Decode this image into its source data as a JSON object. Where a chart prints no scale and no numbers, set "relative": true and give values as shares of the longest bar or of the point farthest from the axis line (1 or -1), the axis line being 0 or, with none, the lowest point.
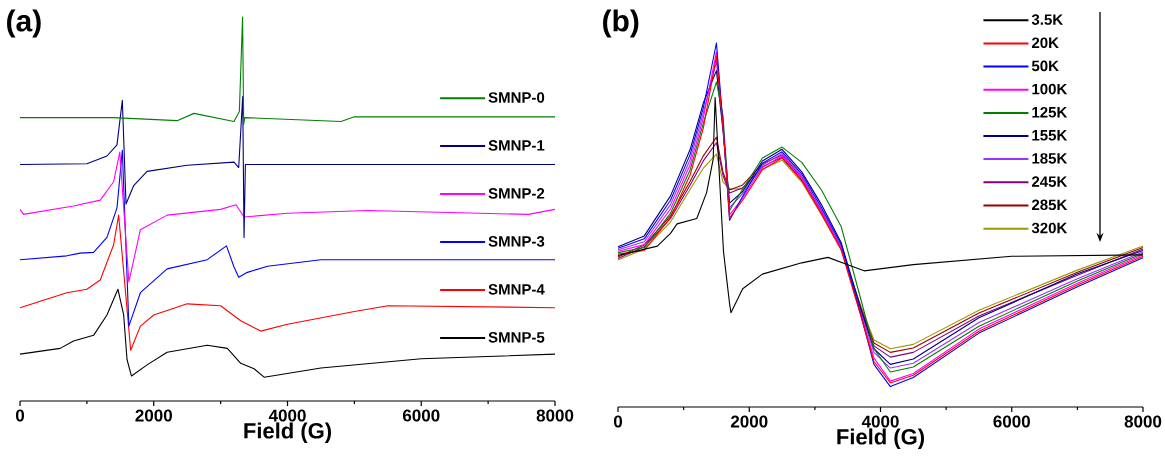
{
  "chart_data": [
    {
      "type": "line",
      "title": "(a)",
      "xlabel": "Field (G)",
      "relative": true,
      "xlim": [
        0,
        8000
      ],
      "xticks": [
        0,
        2000,
        4000,
        6000,
        8000
      ],
      "legend": "right",
      "series": [
        {
          "name": "SMNP-0",
          "color": "#008000",
          "x": [
            0,
            1400,
            2350,
            2600,
            3200,
            3280,
            3328,
            3345,
            3360,
            4800,
            5000,
            8000
          ],
          "values": [
            0.738,
            0.738,
            0.73,
            0.749,
            0.728,
            0.754,
            1.0,
            0.72,
            0.738,
            0.728,
            0.74,
            0.74
          ]
        },
        {
          "name": "SMNP-1",
          "color": "#000080",
          "x": [
            0,
            1000,
            1300,
            1450,
            1530,
            1585,
            1700,
            1900,
            2500,
            3200,
            3270,
            3330,
            3350,
            3370,
            8000
          ],
          "values": [
            0.616,
            0.618,
            0.638,
            0.667,
            0.783,
            0.513,
            0.561,
            0.598,
            0.614,
            0.622,
            0.608,
            0.793,
            0.426,
            0.616,
            0.616
          ]
        },
        {
          "name": "SMNP-2",
          "color": "#ff00ff",
          "x": [
            0,
            50,
            800,
            1200,
            1400,
            1492,
            1628,
            1800,
            2200,
            3000,
            3230,
            3350,
            4000,
            5200,
            7600,
            8000
          ],
          "values": [
            0.499,
            0.486,
            0.508,
            0.523,
            0.571,
            0.648,
            0.31,
            0.446,
            0.484,
            0.499,
            0.511,
            0.479,
            0.489,
            0.496,
            0.486,
            0.499
          ]
        },
        {
          "name": "SMNP-3",
          "color": "#0000ff",
          "x": [
            0,
            700,
            900,
            1100,
            1300,
            1450,
            1530,
            1628,
            1800,
            2200,
            2800,
            3087,
            3200,
            3270,
            3400,
            3700,
            4500,
            8000
          ],
          "values": [
            0.368,
            0.378,
            0.385,
            0.387,
            0.426,
            0.503,
            0.653,
            0.195,
            0.282,
            0.344,
            0.368,
            0.404,
            0.349,
            0.322,
            0.335,
            0.351,
            0.368,
            0.368
          ]
        },
        {
          "name": "SMNP-4",
          "color": "#ff0000",
          "x": [
            0,
            700,
            1000,
            1200,
            1400,
            1475,
            1655,
            1800,
            2000,
            2500,
            3000,
            3300,
            3600,
            4000,
            5000,
            5500,
            8000
          ],
          "values": [
            0.243,
            0.282,
            0.291,
            0.315,
            0.407,
            0.484,
            0.132,
            0.195,
            0.224,
            0.253,
            0.248,
            0.209,
            0.182,
            0.2,
            0.233,
            0.248,
            0.243
          ]
        },
        {
          "name": "SMNP-5",
          "color": "#000000",
          "x": [
            0,
            600,
            800,
            1100,
            1300,
            1464,
            1550,
            1600,
            1667,
            1900,
            2200,
            2800,
            3100,
            3300,
            3500,
            3650,
            4500,
            6000,
            8000
          ],
          "values": [
            0.122,
            0.137,
            0.156,
            0.171,
            0.224,
            0.291,
            0.224,
            0.108,
            0.065,
            0.094,
            0.127,
            0.145,
            0.137,
            0.098,
            0.084,
            0.062,
            0.086,
            0.11,
            0.122
          ]
        }
      ]
    },
    {
      "type": "line",
      "title": "(b)",
      "xlabel": "Field (G)",
      "relative": true,
      "xlim": [
        0,
        8000
      ],
      "xticks": [
        0,
        2000,
        4000,
        6000,
        8000
      ],
      "legend": "top right",
      "x": [
        0,
        400,
        800,
        1100,
        1300,
        1500,
        1600,
        1700,
        1900,
        2200,
        2500,
        2800,
        3100,
        3400,
        3700,
        3900,
        4150,
        4500,
        5500,
        7000,
        8000
      ],
      "series": [
        {
          "name": "3.5K",
          "color": "#000000",
          "x": [
            0,
            600,
            800,
            900,
            1200,
            1350,
            1450,
            1480,
            1608,
            1700,
            1721,
            1900,
            2200,
            2800,
            3200,
            3500,
            3750,
            4500,
            6000,
            8000
          ],
          "values": [
            0.416,
            0.442,
            0.477,
            0.503,
            0.518,
            0.589,
            0.68,
            0.85,
            0.426,
            0.284,
            0.259,
            0.325,
            0.365,
            0.396,
            0.411,
            0.391,
            0.374,
            0.391,
            0.414,
            0.418
          ]
        },
        {
          "name": "20K",
          "color": "#ff0000",
          "values": [
            0.42,
            0.43,
            0.52,
            0.638,
            0.766,
            0.964,
            0.77,
            0.52,
            0.568,
            0.652,
            0.684,
            0.622,
            0.53,
            0.432,
            0.25,
            0.125,
            0.066,
            0.087,
            0.208,
            0.335,
            0.414
          ]
        },
        {
          "name": "50K",
          "color": "#0000ff",
          "values": [
            0.436,
            0.462,
            0.568,
            0.694,
            0.822,
            1.0,
            0.777,
            0.513,
            0.579,
            0.67,
            0.701,
            0.64,
            0.548,
            0.447,
            0.254,
            0.117,
            0.056,
            0.081,
            0.203,
            0.33,
            0.41
          ]
        },
        {
          "name": "100K",
          "color": "#ff00ff",
          "values": [
            0.428,
            0.446,
            0.544,
            0.666,
            0.794,
            0.975,
            0.773,
            0.528,
            0.574,
            0.658,
            0.69,
            0.628,
            0.536,
            0.436,
            0.258,
            0.135,
            0.071,
            0.092,
            0.214,
            0.34,
            0.418
          ]
        },
        {
          "name": "125K",
          "color": "#008000",
          "values": [
            0.424,
            0.438,
            0.532,
            0.652,
            0.78,
            0.893,
            0.8,
            0.54,
            0.598,
            0.684,
            0.714,
            0.672,
            0.596,
            0.496,
            0.296,
            0.16,
            0.096,
            0.11,
            0.222,
            0.346,
            0.422
          ]
        },
        {
          "name": "155K",
          "color": "#000080",
          "values": [
            0.44,
            0.47,
            0.58,
            0.708,
            0.835,
            0.924,
            0.76,
            0.56,
            0.592,
            0.676,
            0.708,
            0.646,
            0.556,
            0.452,
            0.27,
            0.16,
            0.117,
            0.132,
            0.245,
            0.366,
            0.43
          ]
        },
        {
          "name": "185K",
          "color": "#9933ff",
          "values": [
            0.432,
            0.454,
            0.556,
            0.68,
            0.808,
            0.949,
            0.768,
            0.548,
            0.586,
            0.664,
            0.696,
            0.634,
            0.542,
            0.441,
            0.262,
            0.15,
            0.107,
            0.12,
            0.232,
            0.352,
            0.426
          ]
        },
        {
          "name": "245K",
          "color": "#800080",
          "values": [
            0.408,
            0.44,
            0.518,
            0.61,
            0.676,
            0.726,
            0.636,
            0.588,
            0.602,
            0.66,
            0.686,
            0.624,
            0.535,
            0.436,
            0.266,
            0.168,
            0.137,
            0.15,
            0.25,
            0.362,
            0.434
          ]
        },
        {
          "name": "285K",
          "color": "#990000",
          "values": [
            0.412,
            0.445,
            0.525,
            0.62,
            0.69,
            0.741,
            0.645,
            0.596,
            0.61,
            0.668,
            0.692,
            0.63,
            0.54,
            0.44,
            0.272,
            0.176,
            0.15,
            0.162,
            0.258,
            0.37,
            0.438
          ]
        },
        {
          "name": "320K",
          "color": "#999900",
          "values": [
            0.404,
            0.434,
            0.508,
            0.598,
            0.656,
            0.695,
            0.618,
            0.6,
            0.598,
            0.654,
            0.678,
            0.618,
            0.528,
            0.432,
            0.278,
            0.184,
            0.16,
            0.172,
            0.266,
            0.376,
            0.442
          ]
        }
      ]
    }
  ]
}
